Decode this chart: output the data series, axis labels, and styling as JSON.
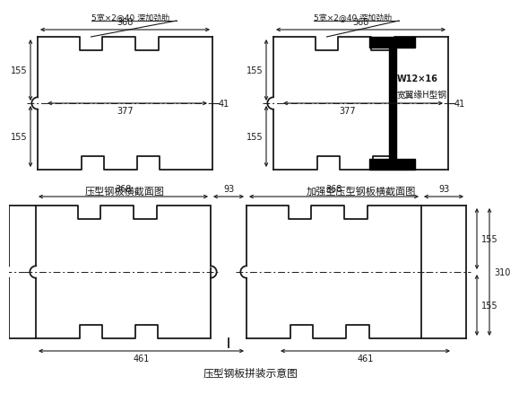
{
  "title1": "压型钢板横截面图",
  "title2": "加强型压型钢板横截面图",
  "title3": "压型钢板拼装示意图",
  "ann1": "5宽×2@40 深加劲肋",
  "ann2": "5宽×2@40 深加劲肋",
  "ann3": "W12×16",
  "ann4": "宽翼缘H型钢",
  "d368": "368",
  "d377": "377",
  "d41": "41",
  "d155": "155",
  "d310": "310",
  "d93": "93",
  "d461": "461",
  "bg": "#ffffff",
  "lc": "#1a1a1a"
}
